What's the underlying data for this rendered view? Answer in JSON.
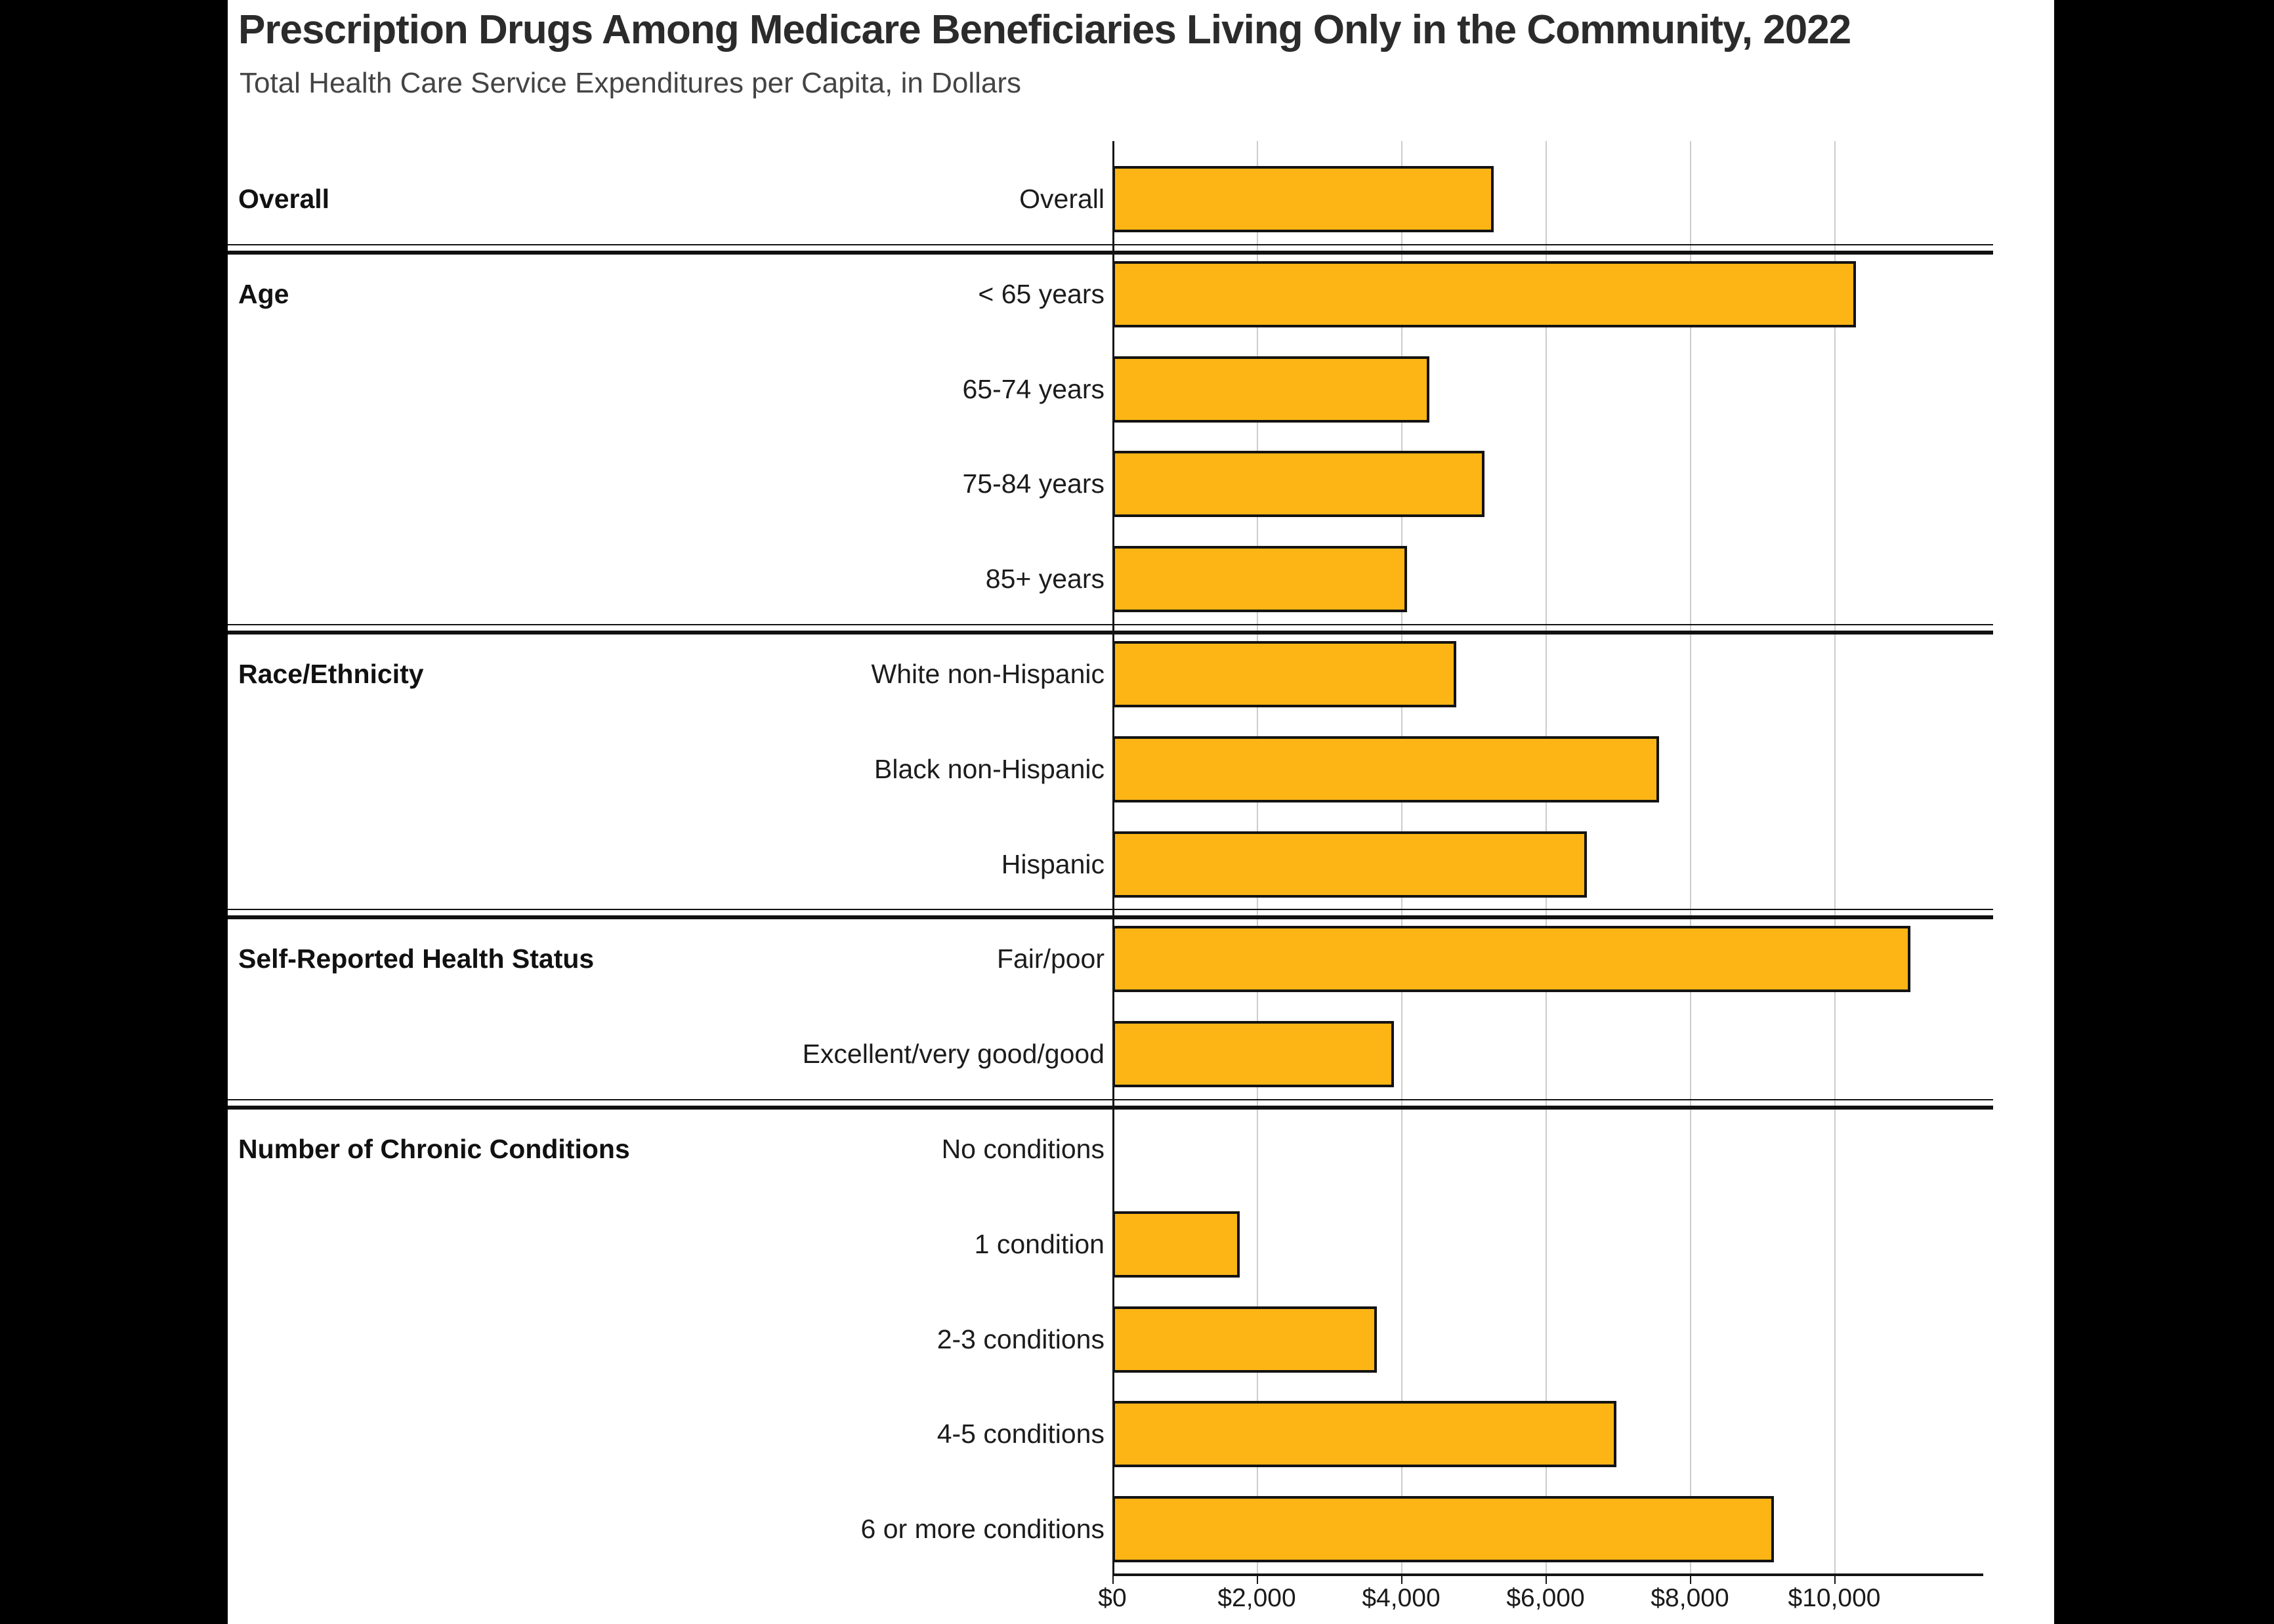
{
  "header": {
    "title": "Prescription Drugs Among Medicare Beneficiaries Living Only in the Community, 2022",
    "subtitle": "Total Health Care Service Expenditures per Capita, in Dollars"
  },
  "colors": {
    "bar_fill": "#FCB515",
    "bar_border": "#131313",
    "gridline": "#cccccc",
    "axis": "#141414",
    "separator": "#111111",
    "background": "#ffffff",
    "letterbox": "#000000"
  },
  "chart_data": {
    "type": "bar",
    "orientation": "horizontal",
    "title": "Prescription Drugs Among Medicare Beneficiaries Living Only in the Community, 2022",
    "subtitle": "Total Health Care Service Expenditures per Capita, in Dollars",
    "xlabel": "",
    "ylabel": "",
    "x_range": [
      0,
      12060
    ],
    "grid": true,
    "x_ticks": [
      {
        "label": "$0",
        "value": 0
      },
      {
        "label": "$2,000",
        "value": 2000
      },
      {
        "label": "$4,000",
        "value": 4000
      },
      {
        "label": "$6,000",
        "value": 6000
      },
      {
        "label": "$8,000",
        "value": 8000
      },
      {
        "label": "$10,000",
        "value": 10000
      }
    ],
    "groups": [
      {
        "label": "Overall",
        "rows": [
          {
            "label": "Overall",
            "value": 5280
          }
        ]
      },
      {
        "label": "Age",
        "rows": [
          {
            "label": "< 65 years",
            "value": 10300
          },
          {
            "label": "65-74 years",
            "value": 4390
          },
          {
            "label": "75-84 years",
            "value": 5150
          },
          {
            "label": "85+ years",
            "value": 4080
          }
        ]
      },
      {
        "label": "Race/Ethnicity",
        "rows": [
          {
            "label": "White non-Hispanic",
            "value": 4760
          },
          {
            "label": "Black non-Hispanic",
            "value": 7570
          },
          {
            "label": "Hispanic",
            "value": 6570
          }
        ]
      },
      {
        "label": "Self-Reported Health Status",
        "rows": [
          {
            "label": "Fair/poor",
            "value": 11050
          },
          {
            "label": "Excellent/very good/good",
            "value": 3900
          }
        ]
      },
      {
        "label": "Number of Chronic Conditions",
        "rows": [
          {
            "label": "No conditions",
            "value": 0
          },
          {
            "label": "1 condition",
            "value": 1760
          },
          {
            "label": "2-3 conditions",
            "value": 3660
          },
          {
            "label": "4-5 conditions",
            "value": 6980
          },
          {
            "label": "6 or more conditions",
            "value": 9160
          }
        ]
      }
    ]
  }
}
